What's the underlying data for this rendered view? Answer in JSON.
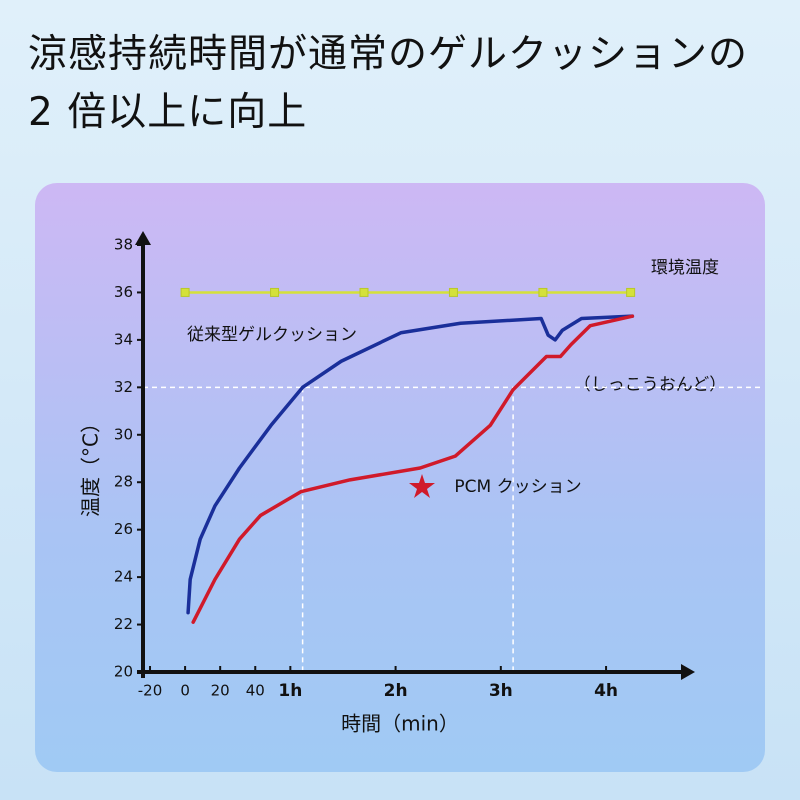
{
  "chart_data": {
    "type": "line",
    "title": "涼感持続時間が通常のゲルクッションの 2 倍以上に向上",
    "x_label": "時間（min）",
    "y_label": "温度（°C）",
    "xlim": [
      -24,
      285
    ],
    "ylim": [
      20,
      38
    ],
    "xticks": [
      -20,
      0,
      20,
      40,
      {
        "value": 60,
        "label": "1h"
      },
      {
        "value": 120,
        "label": "2h"
      },
      {
        "value": 180,
        "label": "3h"
      },
      {
        "value": 240,
        "label": "4h"
      }
    ],
    "yticks": [
      20,
      22,
      24,
      26,
      28,
      30,
      32,
      34,
      36,
      38
    ],
    "reference_y": 32,
    "reference_x": [
      67,
      187
    ],
    "annotations": [
      "（しっこうおんど）"
    ],
    "series": [
      {
        "name": "環境温度",
        "color": "#d4e13a",
        "markers": true,
        "x": [
          0,
          51,
          102,
          153,
          204,
          254
        ],
        "values": [
          36,
          36,
          36,
          36,
          36,
          36
        ]
      },
      {
        "name": "従来型ゲルクッション",
        "color": "#1a2f9a",
        "markers": false,
        "x": [
          1.7,
          2.9,
          8.6,
          17,
          31,
          49,
          67,
          89,
          123,
          157,
          203,
          207,
          211,
          215,
          226,
          255
        ],
        "values": [
          22.5,
          23.9,
          25.6,
          27.0,
          28.6,
          30.4,
          32.0,
          33.1,
          34.3,
          34.7,
          34.9,
          34.2,
          34.0,
          34.4,
          34.9,
          35.0
        ]
      },
      {
        "name": "PCM クッション",
        "color": "#d01a2a",
        "markers": false,
        "x": [
          4.6,
          17,
          31,
          43,
          66,
          94,
          134,
          154,
          174,
          187,
          206,
          214,
          220,
          231,
          255
        ],
        "values": [
          22.1,
          23.9,
          25.6,
          26.6,
          27.6,
          28.1,
          28.6,
          29.1,
          30.4,
          31.9,
          33.3,
          33.3,
          33.8,
          34.6,
          35.0
        ]
      }
    ]
  }
}
